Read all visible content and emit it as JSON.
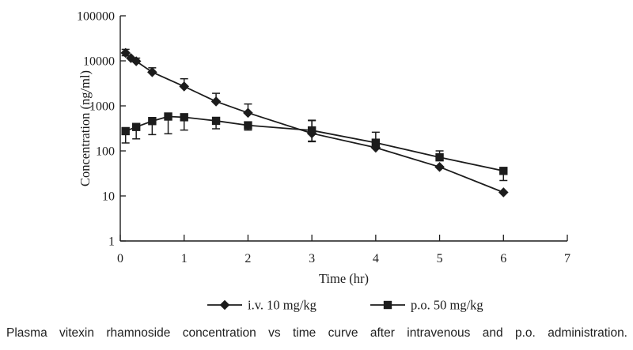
{
  "figure": {
    "caption": "Plasma vitexin rhamnoside concentration vs time curve after intravenous and p.o. administration."
  },
  "chart_data": {
    "type": "line",
    "title": "",
    "xlabel": "Time (hr)",
    "ylabel": "Concentration (ng/ml)",
    "x_ticks": [
      0,
      1,
      2,
      3,
      4,
      5,
      6,
      7
    ],
    "xlim": [
      0,
      7
    ],
    "y_scale": "log",
    "ylim": [
      1,
      100000
    ],
    "y_ticks": [
      1,
      10,
      100,
      1000,
      10000,
      100000
    ],
    "y_tick_labels": [
      "1",
      "10",
      "100",
      "1000",
      "10000",
      "100000"
    ],
    "grid": false,
    "legend_position": "bottom-center",
    "colors": {
      "ink": "#1c1c1c",
      "background": "#ffffff"
    },
    "series": [
      {
        "name": "i.v. 10 mg/kg",
        "marker": "diamond",
        "points": [
          {
            "t": 0.083,
            "c": 15000,
            "err_hi": 18000,
            "err_lo": 13000
          },
          {
            "t": 0.167,
            "c": 11500
          },
          {
            "t": 0.25,
            "c": 9800,
            "err_hi": 11500
          },
          {
            "t": 0.5,
            "c": 5600,
            "err_hi": 7000
          },
          {
            "t": 1,
            "c": 2700,
            "err_hi": 4000
          },
          {
            "t": 1.5,
            "c": 1250,
            "err_hi": 1900
          },
          {
            "t": 2,
            "c": 700,
            "err_hi": 1100
          },
          {
            "t": 3,
            "c": 245,
            "err_hi": 480,
            "err_lo": 160
          },
          {
            "t": 4,
            "c": 118
          },
          {
            "t": 5,
            "c": 44
          },
          {
            "t": 6,
            "c": 12
          }
        ]
      },
      {
        "name": "p.o. 50 mg/kg",
        "marker": "square",
        "points": [
          {
            "t": 0.083,
            "c": 275,
            "err_lo": 150
          },
          {
            "t": 0.25,
            "c": 340,
            "err_lo": 185
          },
          {
            "t": 0.5,
            "c": 460,
            "err_lo": 230
          },
          {
            "t": 0.75,
            "c": 580,
            "err_lo": 240
          },
          {
            "t": 1,
            "c": 560,
            "err_lo": 290
          },
          {
            "t": 1.5,
            "c": 465,
            "err_lo": 310
          },
          {
            "t": 2,
            "c": 370,
            "err_lo": 290
          },
          {
            "t": 3,
            "c": 285,
            "err_hi": 470,
            "err_lo": 165
          },
          {
            "t": 4,
            "c": 152,
            "err_hi": 260
          },
          {
            "t": 5,
            "c": 72,
            "err_hi": 100
          },
          {
            "t": 6,
            "c": 36,
            "err_lo": 22
          }
        ]
      }
    ]
  }
}
